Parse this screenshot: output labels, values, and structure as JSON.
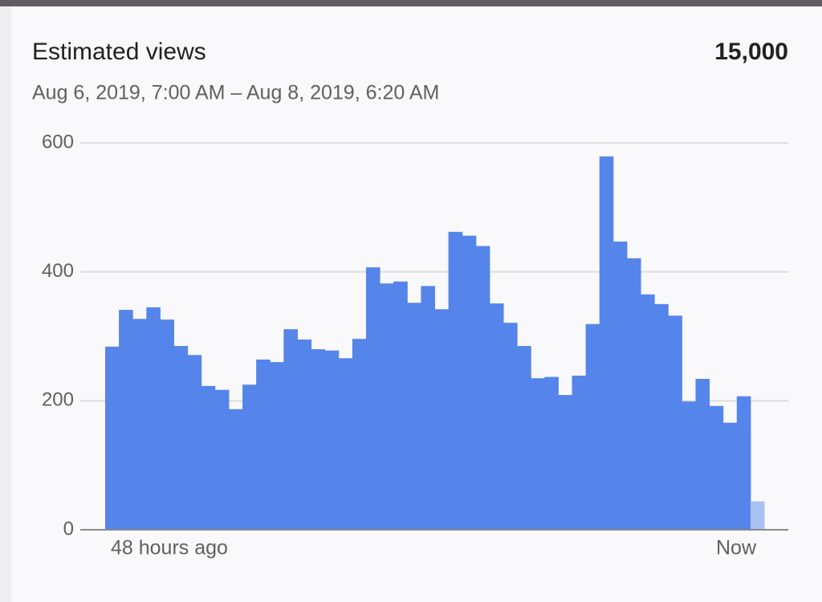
{
  "chart_data": {
    "type": "bar",
    "title": "Estimated views",
    "total": "15,000",
    "subtitle": "Aug 6, 2019, 7:00 AM – Aug 8, 2019, 6:20 AM",
    "categories": [
      "48 hours ago",
      null,
      null,
      null,
      null,
      null,
      null,
      null,
      null,
      null,
      null,
      null,
      null,
      null,
      null,
      null,
      null,
      null,
      null,
      null,
      null,
      null,
      null,
      null,
      null,
      null,
      null,
      null,
      null,
      null,
      null,
      null,
      null,
      null,
      null,
      null,
      null,
      null,
      null,
      null,
      null,
      null,
      null,
      null,
      null,
      null,
      null,
      "Now"
    ],
    "values": [
      284,
      341,
      327,
      345,
      326,
      285,
      271,
      223,
      217,
      187,
      225,
      264,
      260,
      311,
      295,
      280,
      278,
      266,
      296,
      407,
      382,
      385,
      352,
      378,
      342,
      462,
      456,
      440,
      351,
      321,
      285,
      235,
      237,
      209,
      239,
      319,
      579,
      447,
      421,
      365,
      350,
      332,
      199,
      234,
      192,
      166,
      207,
      44
    ],
    "color": "#5585ea",
    "last_color": "#a9c1f3",
    "ylim": [
      0,
      600
    ],
    "yticks": [
      0,
      200,
      400,
      600
    ],
    "grid": true
  }
}
